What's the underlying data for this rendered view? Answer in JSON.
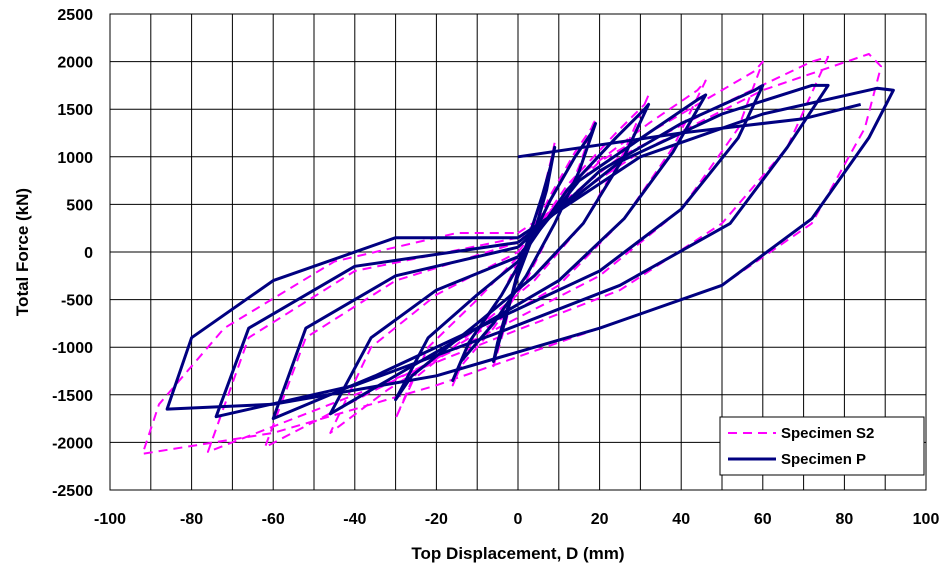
{
  "chart_data": {
    "type": "line",
    "title": "",
    "xlabel": "Top Displacement, D (mm)",
    "ylabel": "Total Force (kN)",
    "xlim": [
      -100,
      100
    ],
    "ylim": [
      -2500,
      2500
    ],
    "xticks": [
      -100,
      -80,
      -60,
      -40,
      -20,
      0,
      20,
      40,
      60,
      80,
      100
    ],
    "yticks": [
      2500,
      2000,
      1500,
      1000,
      500,
      0,
      -500,
      -1000,
      -1500,
      -2000,
      -2500
    ],
    "grid": true,
    "legend_position": "bottom-right",
    "series": [
      {
        "name": "Specimen S2",
        "color": "#ff00ff",
        "style": "dashed",
        "loops": [
          [
            [
              0,
              -150
            ],
            [
              3,
              200
            ],
            [
              6,
              600
            ],
            [
              8,
              950
            ],
            [
              9,
              1150
            ],
            [
              7,
              700
            ],
            [
              4,
              250
            ],
            [
              0,
              -250
            ],
            [
              -3,
              -650
            ],
            [
              -5,
              -1000
            ],
            [
              -6,
              -1200
            ],
            [
              -3,
              -750
            ],
            [
              0,
              -150
            ]
          ],
          [
            [
              0,
              -100
            ],
            [
              8,
              600
            ],
            [
              14,
              1050
            ],
            [
              18,
              1300
            ],
            [
              19,
              1400
            ],
            [
              15,
              900
            ],
            [
              9,
              300
            ],
            [
              2,
              -300
            ],
            [
              -6,
              -800
            ],
            [
              -14,
              -1200
            ],
            [
              -16,
              -1400
            ],
            [
              -12,
              -1000
            ],
            [
              -4,
              -450
            ],
            [
              0,
              -100
            ]
          ],
          [
            [
              0,
              -50
            ],
            [
              12,
              700
            ],
            [
              24,
              1250
            ],
            [
              31,
              1550
            ],
            [
              32,
              1650
            ],
            [
              26,
              1050
            ],
            [
              16,
              300
            ],
            [
              4,
              -300
            ],
            [
              -10,
              -800
            ],
            [
              -26,
              -1350
            ],
            [
              -30,
              -1750
            ],
            [
              -22,
              -1000
            ],
            [
              -10,
              -500
            ],
            [
              0,
              -50
            ]
          ],
          [
            [
              0,
              0
            ],
            [
              15,
              800
            ],
            [
              32,
              1350
            ],
            [
              44,
              1700
            ],
            [
              46,
              1800
            ],
            [
              38,
              1100
            ],
            [
              26,
              350
            ],
            [
              10,
              -350
            ],
            [
              -10,
              -850
            ],
            [
              -32,
              -1450
            ],
            [
              -46,
              -1900
            ],
            [
              -36,
              -1000
            ],
            [
              -20,
              -450
            ],
            [
              0,
              0
            ]
          ],
          [
            [
              0,
              100
            ],
            [
              20,
              950
            ],
            [
              40,
              1450
            ],
            [
              58,
              1900
            ],
            [
              60,
              2000
            ],
            [
              54,
              1300
            ],
            [
              40,
              450
            ],
            [
              20,
              -250
            ],
            [
              -5,
              -800
            ],
            [
              -35,
              -1450
            ],
            [
              -62,
              -2050
            ],
            [
              -52,
              -900
            ],
            [
              -30,
              -300
            ],
            [
              0,
              100
            ]
          ],
          [
            [
              0,
              150
            ],
            [
              25,
              1000
            ],
            [
              50,
              1550
            ],
            [
              72,
              2000
            ],
            [
              76,
              2050
            ],
            [
              66,
              1100
            ],
            [
              50,
              300
            ],
            [
              25,
              -400
            ],
            [
              -5,
              -900
            ],
            [
              -40,
              -1500
            ],
            [
              -76,
              -2100
            ],
            [
              -66,
              -900
            ],
            [
              -40,
              -200
            ],
            [
              0,
              150
            ]
          ],
          [
            [
              0,
              200
            ],
            [
              30,
              1050
            ],
            [
              60,
              1700
            ],
            [
              86,
              2080
            ],
            [
              89,
              1950
            ],
            [
              85,
              1300
            ],
            [
              72,
              300
            ],
            [
              50,
              -350
            ],
            [
              20,
              -800
            ],
            [
              -20,
              -1400
            ],
            [
              -60,
              -1900
            ],
            [
              -92,
              -2120
            ],
            [
              -88,
              -1600
            ],
            [
              -72,
              -800
            ],
            [
              -45,
              -100
            ],
            [
              -15,
              200
            ],
            [
              0,
              200
            ]
          ]
        ]
      },
      {
        "name": "Specimen P",
        "color": "#000080",
        "style": "solid",
        "loops": [
          [
            [
              0,
              -200
            ],
            [
              3,
              200
            ],
            [
              6,
              600
            ],
            [
              8,
              900
            ],
            [
              9,
              1100
            ],
            [
              7,
              650
            ],
            [
              4,
              200
            ],
            [
              0,
              -250
            ],
            [
              -3,
              -650
            ],
            [
              -5,
              -950
            ],
            [
              -6,
              -1150
            ],
            [
              -3,
              -700
            ],
            [
              0,
              -200
            ]
          ],
          [
            [
              0,
              -150
            ],
            [
              8,
              550
            ],
            [
              14,
              1000
            ],
            [
              18,
              1250
            ],
            [
              19,
              1350
            ],
            [
              15,
              850
            ],
            [
              9,
              300
            ],
            [
              2,
              -250
            ],
            [
              -6,
              -750
            ],
            [
              -14,
              -1150
            ],
            [
              -16,
              -1350
            ],
            [
              -12,
              -950
            ],
            [
              -4,
              -450
            ],
            [
              0,
              -150
            ]
          ],
          [
            [
              0,
              -100
            ],
            [
              12,
              650
            ],
            [
              24,
              1200
            ],
            [
              31,
              1500
            ],
            [
              32,
              1550
            ],
            [
              26,
              1000
            ],
            [
              16,
              300
            ],
            [
              4,
              -250
            ],
            [
              -10,
              -750
            ],
            [
              -26,
              -1300
            ],
            [
              -30,
              -1550
            ],
            [
              -22,
              -900
            ],
            [
              -10,
              -450
            ],
            [
              0,
              -100
            ]
          ],
          [
            [
              0,
              -50
            ],
            [
              15,
              750
            ],
            [
              32,
              1250
            ],
            [
              44,
              1600
            ],
            [
              46,
              1650
            ],
            [
              38,
              1050
            ],
            [
              26,
              350
            ],
            [
              10,
              -300
            ],
            [
              -10,
              -800
            ],
            [
              -32,
              -1350
            ],
            [
              -46,
              -1700
            ],
            [
              -36,
              -900
            ],
            [
              -20,
              -400
            ],
            [
              0,
              -50
            ]
          ],
          [
            [
              0,
              50
            ],
            [
              20,
              850
            ],
            [
              40,
              1350
            ],
            [
              58,
              1700
            ],
            [
              60,
              1750
            ],
            [
              54,
              1200
            ],
            [
              40,
              450
            ],
            [
              20,
              -200
            ],
            [
              -5,
              -700
            ],
            [
              -35,
              -1300
            ],
            [
              -60,
              -1750
            ],
            [
              -52,
              -800
            ],
            [
              -30,
              -250
            ],
            [
              0,
              50
            ]
          ],
          [
            [
              0,
              100
            ],
            [
              25,
              950
            ],
            [
              50,
              1450
            ],
            [
              72,
              1750
            ],
            [
              76,
              1750
            ],
            [
              66,
              1100
            ],
            [
              52,
              300
            ],
            [
              25,
              -350
            ],
            [
              -5,
              -850
            ],
            [
              -40,
              -1400
            ],
            [
              -74,
              -1730
            ],
            [
              -66,
              -800
            ],
            [
              -40,
              -150
            ],
            [
              0,
              100
            ]
          ],
          [
            [
              0,
              150
            ],
            [
              30,
              1000
            ],
            [
              60,
              1450
            ],
            [
              88,
              1720
            ],
            [
              92,
              1700
            ],
            [
              86,
              1200
            ],
            [
              72,
              350
            ],
            [
              50,
              -350
            ],
            [
              20,
              -800
            ],
            [
              -20,
              -1300
            ],
            [
              -60,
              -1600
            ],
            [
              -86,
              -1650
            ],
            [
              -80,
              -900
            ],
            [
              -60,
              -300
            ],
            [
              -30,
              150
            ],
            [
              0,
              150
            ]
          ],
          [
            [
              0,
              1000
            ],
            [
              40,
              1250
            ],
            [
              70,
              1400
            ],
            [
              84,
              1550
            ]
          ]
        ]
      }
    ]
  }
}
